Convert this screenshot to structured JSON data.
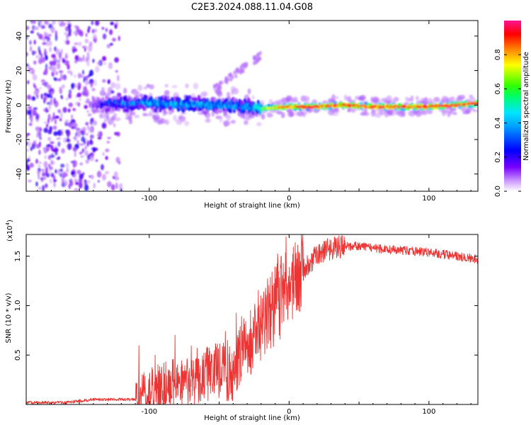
{
  "title": "C2E3.2024.088.11.04.G08",
  "chart_data": [
    {
      "type": "heatmap",
      "name": "spectrogram",
      "xlabel": "Height of straight line (km)",
      "ylabel": "Frequency (Hz)",
      "xlim": [
        -188,
        135
      ],
      "ylim": [
        -50,
        49
      ],
      "xticks": [
        -100,
        0,
        100
      ],
      "yticks": [
        -40,
        -20,
        0,
        20,
        40
      ],
      "grid": false,
      "colorbar": {
        "label": "Normalized spectral amplitude",
        "range": [
          0.0,
          1.0
        ],
        "ticks": [
          "0.0",
          "0.2",
          "0.4",
          "0.6",
          "0.8"
        ],
        "colormap": [
          "#ffffff",
          "#7a00ff",
          "#0000ff",
          "#00e5ff",
          "#00ff00",
          "#ffff00",
          "#ff0000",
          "#ff1493"
        ]
      },
      "description_points": {
        "x": [
          -188,
          -140,
          -130,
          -100,
          -60,
          -30,
          -20,
          0,
          20,
          40,
          60,
          80,
          100,
          120,
          135
        ],
        "peak_frequency": [
          0,
          0,
          1,
          1,
          0,
          -1,
          -2,
          -1,
          -1,
          0,
          -1,
          -1,
          -1,
          0,
          1
        ],
        "peak_amplitude": [
          0.15,
          0.2,
          0.4,
          0.5,
          0.55,
          0.5,
          0.65,
          0.9,
          0.95,
          0.95,
          0.95,
          0.95,
          0.95,
          0.95,
          0.95
        ]
      }
    },
    {
      "type": "line",
      "name": "snr",
      "xlabel": "Height of straight line (km)",
      "ylabel": "SNR (10 * v/v)",
      "scale_label": "(x10",
      "scale_exponent": "4",
      "xlim": [
        -188,
        135
      ],
      "ylim": [
        0,
        1.72
      ],
      "xticks": [
        -100,
        0,
        100
      ],
      "yticks": [
        0.5,
        1.0,
        1.5
      ],
      "ytick_labels": [
        "0.5",
        "1.0",
        "1.5"
      ],
      "color": "#ee3333",
      "grid": false,
      "series": [
        {
          "name": "SNR",
          "x": [
            -188,
            -160,
            -140,
            -120,
            -110,
            -100,
            -90,
            -80,
            -70,
            -60,
            -50,
            -40,
            -35,
            -30,
            -25,
            -20,
            -15,
            -10,
            -5,
            0,
            5,
            10,
            15,
            20,
            25,
            30,
            40,
            50,
            60,
            80,
            100,
            120,
            135
          ],
          "values": [
            0.02,
            0.02,
            0.05,
            0.05,
            0.05,
            0.12,
            0.18,
            0.22,
            0.2,
            0.3,
            0.35,
            0.3,
            0.5,
            0.55,
            0.75,
            0.8,
            0.9,
            1.0,
            1.1,
            1.2,
            1.28,
            1.35,
            1.45,
            1.5,
            1.55,
            1.58,
            1.6,
            1.6,
            1.58,
            1.56,
            1.54,
            1.5,
            1.47
          ]
        }
      ]
    }
  ]
}
